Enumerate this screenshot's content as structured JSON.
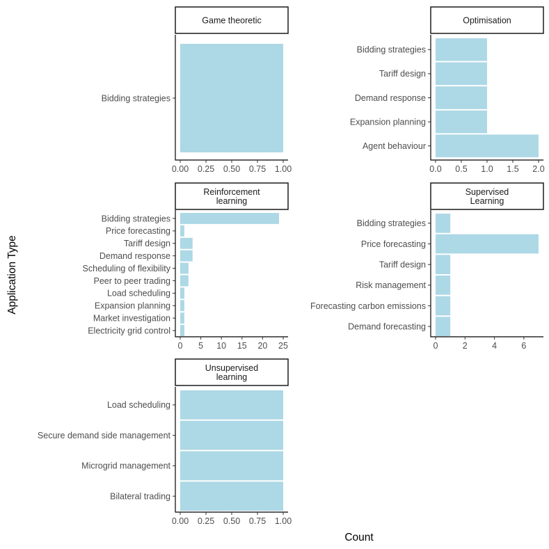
{
  "chart_data": {
    "type": "bar",
    "orientation": "horizontal",
    "faceted": true,
    "xlabel": "Count",
    "ylabel": "Application Type",
    "bar_color": "#add8e6",
    "panels": [
      {
        "title": [
          "Game theoretic"
        ],
        "categories": [
          "Bidding strategies"
        ],
        "values": [
          1
        ],
        "xlim": [
          0,
          1
        ],
        "ticks": [
          0,
          0.25,
          0.5,
          0.75,
          1
        ],
        "tick_labels": [
          "0.00",
          "0.25",
          "0.50",
          "0.75",
          "1.00"
        ]
      },
      {
        "title": [
          "Optimisation"
        ],
        "categories": [
          "Bidding strategies",
          "Tariff design",
          "Demand response",
          "Expansion planning",
          "Agent behaviour"
        ],
        "values": [
          1,
          1,
          1,
          1,
          2
        ],
        "xlim": [
          0,
          2
        ],
        "ticks": [
          0,
          0.5,
          1,
          1.5,
          2
        ],
        "tick_labels": [
          "0.0",
          "0.5",
          "1.0",
          "1.5",
          "2.0"
        ]
      },
      {
        "title": [
          "Reinforcement",
          "learning"
        ],
        "categories": [
          "Bidding strategies",
          "Price forecasting",
          "Tariff design",
          "Demand response",
          "Scheduling of flexibility",
          "Peer to peer trading",
          "Load scheduling",
          "Expansion planning",
          "Market investigation",
          "Electricity grid control"
        ],
        "values": [
          24,
          1,
          3,
          3,
          2,
          2,
          1,
          1,
          1,
          1
        ],
        "xlim": [
          0,
          25
        ],
        "ticks": [
          0,
          5,
          10,
          15,
          20,
          25
        ],
        "tick_labels": [
          "0",
          "5",
          "10",
          "15",
          "20",
          "25"
        ]
      },
      {
        "title": [
          "Supervised",
          "Learning"
        ],
        "categories": [
          "Bidding strategies",
          "Price forecasting",
          "Tariff design",
          "Risk management",
          "Forecasting carbon emissions",
          "Demand forecasting"
        ],
        "values": [
          1,
          7,
          1,
          1,
          1,
          1
        ],
        "xlim": [
          0,
          7
        ],
        "ticks": [
          0,
          2,
          4,
          6
        ],
        "tick_labels": [
          "0",
          "2",
          "4",
          "6"
        ]
      },
      {
        "title": [
          "Unsupervised",
          "learning"
        ],
        "categories": [
          "Load scheduling",
          "Secure demand side management",
          "Microgrid management",
          "Bilateral trading"
        ],
        "values": [
          1,
          1,
          1,
          1
        ],
        "xlim": [
          0,
          1
        ],
        "ticks": [
          0,
          0.25,
          0.5,
          0.75,
          1
        ],
        "tick_labels": [
          "0.00",
          "0.25",
          "0.50",
          "0.75",
          "1.00"
        ]
      }
    ]
  }
}
